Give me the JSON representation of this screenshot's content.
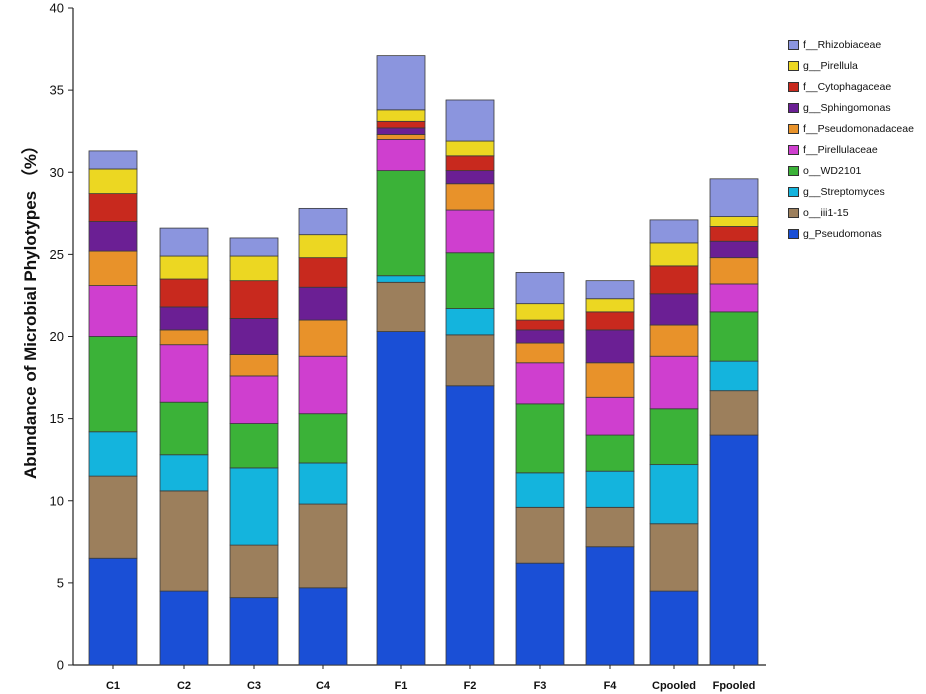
{
  "chart_data": {
    "type": "bar",
    "stacked": true,
    "title": "",
    "xlabel": "",
    "ylabel": "Abundance of Microbial Phylotypes （%）",
    "ylim": [
      0,
      40
    ],
    "yticks": [
      0,
      5,
      10,
      15,
      20,
      25,
      30,
      35,
      40
    ],
    "grid": false,
    "legend_position": "right",
    "categories": [
      "C1",
      "C2",
      "C3",
      "C4",
      "F1",
      "F2",
      "F3",
      "F4",
      "Cpooled",
      "Fpooled"
    ],
    "series": [
      {
        "name": "g_Pseudomonas",
        "color": "#1a4fd6",
        "values": [
          6.5,
          4.5,
          4.1,
          4.7,
          20.3,
          17.0,
          6.2,
          7.2,
          4.5,
          14.0
        ]
      },
      {
        "name": "o__iii1-15",
        "color": "#9c7f5c",
        "values": [
          5.0,
          6.1,
          3.2,
          5.1,
          3.0,
          3.1,
          3.4,
          2.4,
          4.1,
          2.7
        ]
      },
      {
        "name": "g__Streptomyces",
        "color": "#14b4dd",
        "values": [
          2.7,
          2.2,
          4.7,
          2.5,
          0.4,
          1.6,
          2.1,
          2.2,
          3.6,
          1.8
        ]
      },
      {
        "name": "o__WD2101",
        "color": "#3bb238",
        "values": [
          5.8,
          3.2,
          2.7,
          3.0,
          6.4,
          3.4,
          4.2,
          2.2,
          3.4,
          3.0
        ]
      },
      {
        "name": "f__Pirellulaceae",
        "color": "#cf3fcf",
        "values": [
          3.1,
          3.5,
          2.9,
          3.5,
          1.9,
          2.6,
          2.5,
          2.3,
          3.2,
          1.7
        ]
      },
      {
        "name": "f__Pseudomonadaceae",
        "color": "#e8922a",
        "values": [
          2.1,
          0.9,
          1.3,
          2.2,
          0.3,
          1.6,
          1.2,
          2.1,
          1.9,
          1.6
        ]
      },
      {
        "name": "g__Sphingomonas",
        "color": "#6b1f94",
        "values": [
          1.8,
          1.4,
          2.2,
          2.0,
          0.4,
          0.8,
          0.8,
          2.0,
          1.9,
          1.0
        ]
      },
      {
        "name": "f__Cytophagaceae",
        "color": "#c8291e",
        "values": [
          1.7,
          1.7,
          2.3,
          1.8,
          0.4,
          0.9,
          0.6,
          1.1,
          1.7,
          0.9
        ]
      },
      {
        "name": "g__Pirellula",
        "color": "#ecd722",
        "values": [
          1.5,
          1.4,
          1.5,
          1.4,
          0.7,
          0.9,
          1.0,
          0.8,
          1.4,
          0.6
        ]
      },
      {
        "name": "f__Rhizobiaceae",
        "color": "#8b95de",
        "values": [
          1.1,
          1.7,
          1.1,
          1.6,
          3.3,
          2.5,
          1.9,
          1.1,
          1.4,
          2.3
        ]
      }
    ]
  },
  "legend": {
    "items": [
      {
        "label": "f__Rhizobiaceae",
        "color": "#8b95de"
      },
      {
        "label": "g__Pirellula",
        "color": "#ecd722"
      },
      {
        "label": "f__Cytophagaceae",
        "color": "#c8291e"
      },
      {
        "label": "g__Sphingomonas",
        "color": "#6b1f94"
      },
      {
        "label": "f__Pseudomonadaceae",
        "color": "#e8922a"
      },
      {
        "label": "f__Pirellulaceae",
        "color": "#cf3fcf"
      },
      {
        "label": "o__WD2101",
        "color": "#3bb238"
      },
      {
        "label": "g__Streptomyces",
        "color": "#14b4dd"
      },
      {
        "label": "o__iii1-15",
        "color": "#9c7f5c"
      },
      {
        "label": "g_Pseudomonas",
        "color": "#1a4fd6"
      }
    ]
  }
}
